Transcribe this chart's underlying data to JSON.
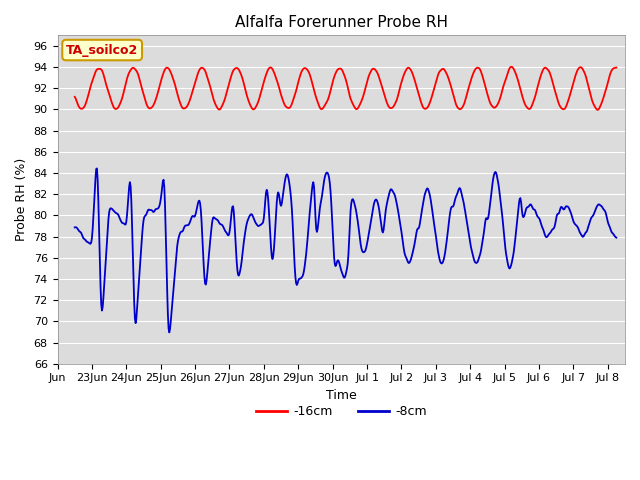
{
  "title": "Alfalfa Forerunner Probe RH",
  "ylabel": "Probe RH (%)",
  "xlabel": "Time",
  "annotation": "TA_soilco2",
  "ylim": [
    66,
    97
  ],
  "yticks": [
    66,
    68,
    70,
    72,
    74,
    76,
    78,
    80,
    82,
    84,
    86,
    88,
    90,
    92,
    94,
    96
  ],
  "fig_bg": "#ffffff",
  "plot_bg": "#dcdcdc",
  "legend_entries": [
    "-16cm",
    "-8cm"
  ],
  "red_line_color": "#ff0000",
  "blue_line_color": "#0000cc",
  "annotation_bg": "#ffffcc",
  "annotation_border": "#cc9900",
  "annotation_text_color": "#cc0000",
  "grid_color": "#ffffff",
  "title_fontsize": 11,
  "axis_fontsize": 9,
  "tick_fontsize": 8
}
